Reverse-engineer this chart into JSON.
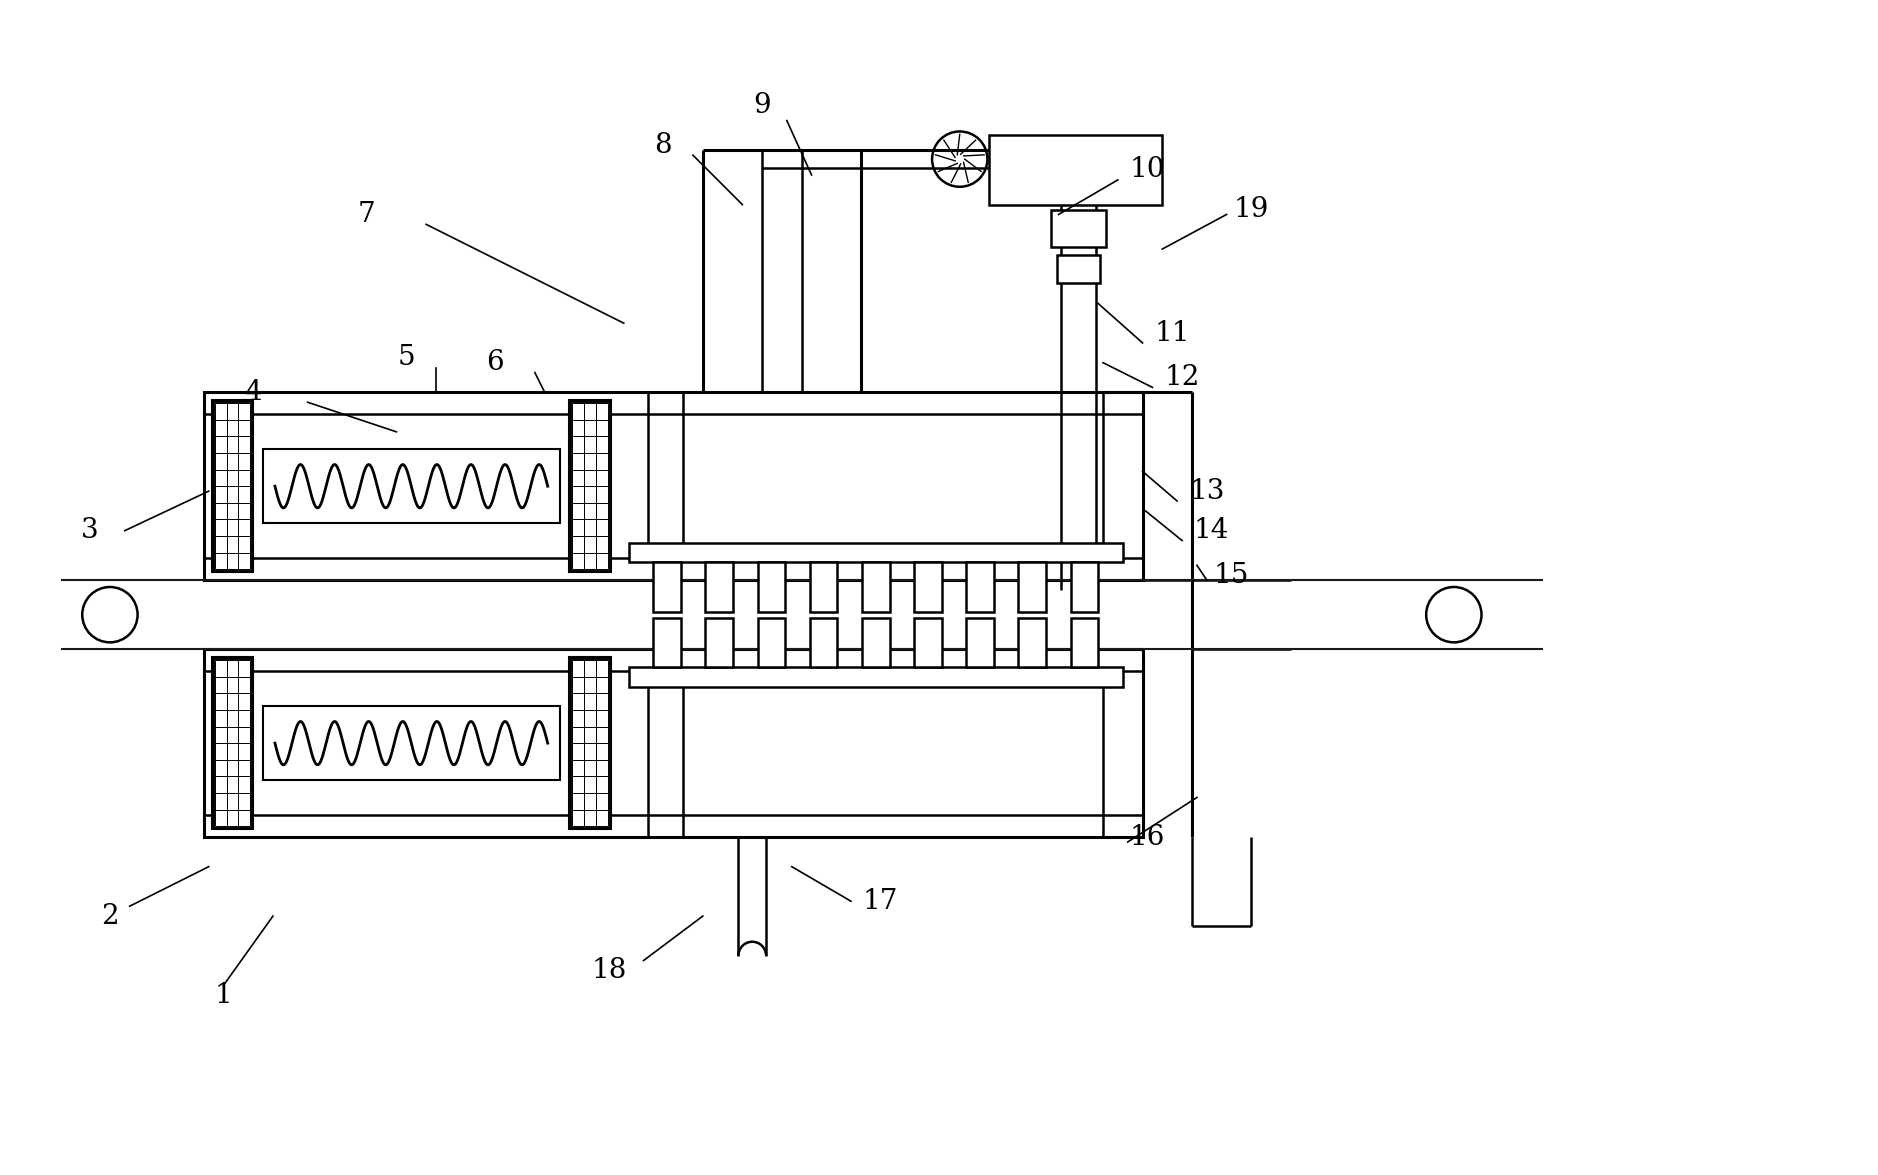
{
  "bg_color": "#ffffff",
  "line_color": "#000000",
  "figsize": [
    18.78,
    11.75
  ],
  "dpi": 100
}
